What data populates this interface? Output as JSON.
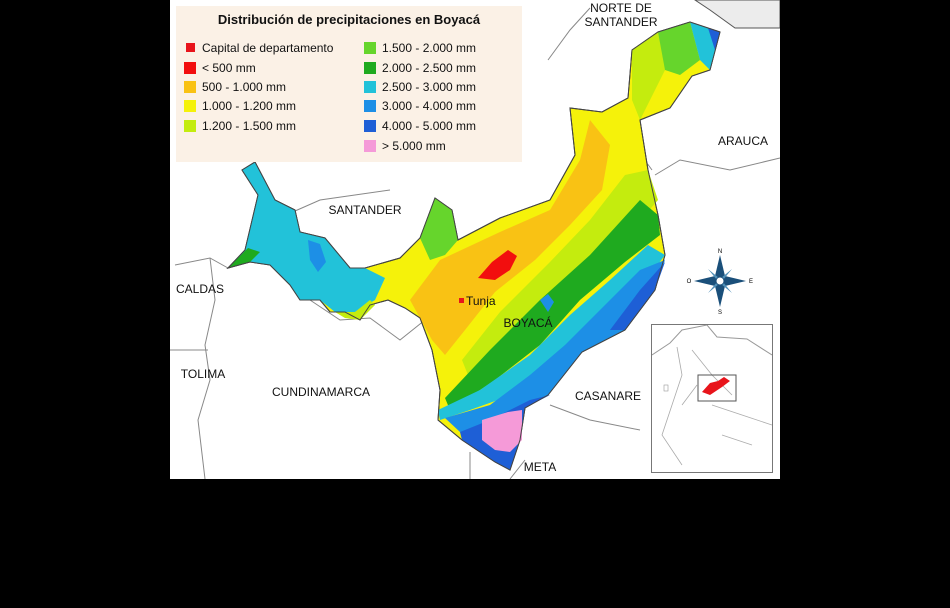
{
  "legend": {
    "title": "Distribución de precipitaciones en Boyacá",
    "items": [
      {
        "label": "Capital de departamento",
        "color": "#e8141b"
      },
      {
        "label": "< 500 mm",
        "color": "#f20e0e"
      },
      {
        "label": "500 - 1.000 mm",
        "color": "#f9c214"
      },
      {
        "label": "1.000 - 1.200 mm",
        "color": "#f5f20a"
      },
      {
        "label": "1.200 - 1.500 mm",
        "color": "#c4ec0e"
      },
      {
        "label": "1.500 - 2.000 mm",
        "color": "#66d52c"
      },
      {
        "label": "2.000 - 2.500 mm",
        "color": "#1faa1f"
      },
      {
        "label": "2.500 - 3.000 mm",
        "color": "#22c2d9"
      },
      {
        "label": "3.000 - 4.000 mm",
        "color": "#1d8fe6"
      },
      {
        "label": "4.000 - 5.000 mm",
        "color": "#1e5fd6"
      },
      {
        "label": "> 5.000 mm",
        "color": "#f59ad8"
      }
    ]
  },
  "labels": {
    "norte_santander": "NORTE DE\nSANTANDER",
    "arauca": "ARAUCA",
    "santander": "SANTANDER",
    "caldas": "CALDAS",
    "tolima": "TOLIMA",
    "cundinamarca": "CUNDINAMARCA",
    "boyaca": "BOYACÁ",
    "casanare": "CASANARE",
    "meta": "META",
    "tunja": "Tunja"
  },
  "compass": {
    "n": "N",
    "s": "S",
    "e": "E",
    "o": "O"
  }
}
